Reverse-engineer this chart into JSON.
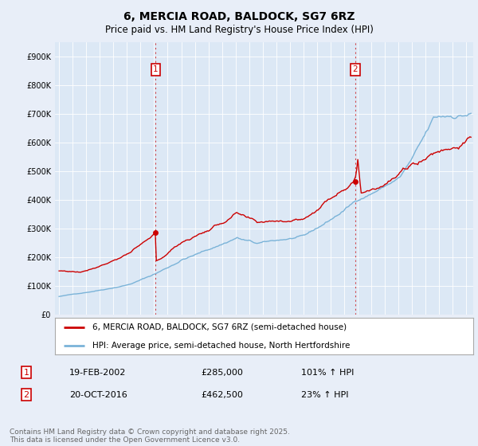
{
  "title": "6, MERCIA ROAD, BALDOCK, SG7 6RZ",
  "subtitle": "Price paid vs. HM Land Registry's House Price Index (HPI)",
  "ylim": [
    0,
    950000
  ],
  "yticks": [
    0,
    100000,
    200000,
    300000,
    400000,
    500000,
    600000,
    700000,
    800000,
    900000
  ],
  "xlim_start": 1994.7,
  "xlim_end": 2025.5,
  "legend_hpi": "HPI: Average price, semi-detached house, North Hertfordshire",
  "legend_property": "6, MERCIA ROAD, BALDOCK, SG7 6RZ (semi-detached house)",
  "transaction1_date": "19-FEB-2002",
  "transaction1_price": "£285,000",
  "transaction1_hpi": "101% ↑ HPI",
  "transaction1_x": 2002.12,
  "transaction1_y": 285000,
  "transaction2_date": "20-OCT-2016",
  "transaction2_price": "£462,500",
  "transaction2_hpi": "23% ↑ HPI",
  "transaction2_x": 2016.8,
  "transaction2_y": 462500,
  "vline1_x": 2002.12,
  "vline2_x": 2016.8,
  "hpi_color": "#7ab3d8",
  "property_color": "#cc0000",
  "vline_color": "#cc0000",
  "background_color": "#e8eef8",
  "plot_bg_color": "#dce8f5",
  "footer_text": "Contains HM Land Registry data © Crown copyright and database right 2025.\nThis data is licensed under the Open Government Licence v3.0.",
  "title_fontsize": 10,
  "subtitle_fontsize": 8.5,
  "tick_fontsize": 7,
  "legend_fontsize": 7.5,
  "table_fontsize": 8,
  "footer_fontsize": 6.5
}
